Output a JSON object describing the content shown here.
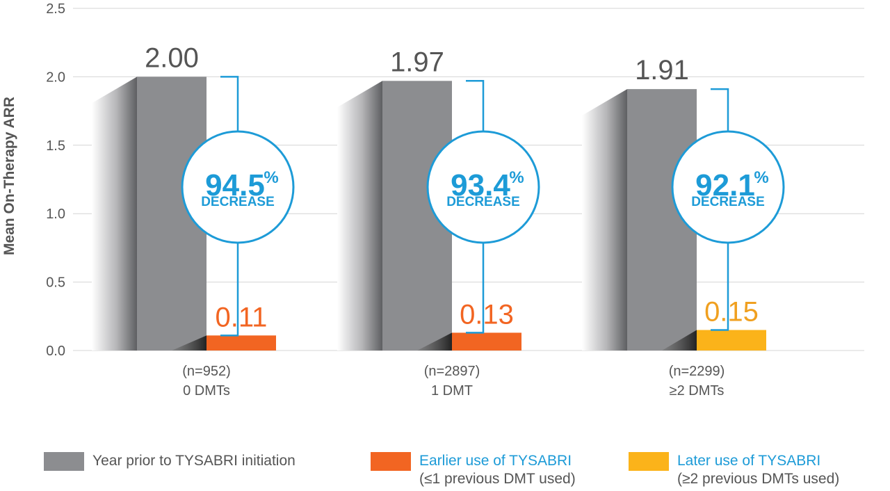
{
  "chart_data": {
    "type": "bar",
    "ylabel": "Mean On-Therapy ARR",
    "ylim": [
      0,
      2.5
    ],
    "yticks": [
      "0.0",
      "0.5",
      "1.0",
      "1.5",
      "2.0",
      "2.5"
    ],
    "grid": true,
    "groups": [
      {
        "n_label": "(n=952)",
        "label": "0 DMTs",
        "prior": 2.0,
        "prior_label": "2.00",
        "post": 0.11,
        "post_label": "0.11",
        "post_series": "earlier",
        "decrease_pct": "94.5",
        "decrease_label": "DECREASE"
      },
      {
        "n_label": "(n=2897)",
        "label": "1 DMT",
        "prior": 1.97,
        "prior_label": "1.97",
        "post": 0.13,
        "post_label": "0.13",
        "post_series": "earlier",
        "decrease_pct": "93.4",
        "decrease_label": "DECREASE"
      },
      {
        "n_label": "(n=2299)",
        "label": "≥2 DMTs",
        "prior": 1.91,
        "prior_label": "1.91",
        "post": 0.15,
        "post_label": "0.15",
        "post_series": "later",
        "decrease_pct": "92.1",
        "decrease_label": "DECREASE"
      }
    ],
    "percent_sign": "%",
    "legend": [
      {
        "key": "prior",
        "label": "Year prior to TYSABRI initiation",
        "sublabel": "",
        "color": "#8c8d90"
      },
      {
        "key": "earlier",
        "label": "Earlier use of TYSABRI",
        "sublabel": "(≤1 previous DMT used)",
        "color": "#f26522"
      },
      {
        "key": "later",
        "label": "Later use of TYSABRI",
        "sublabel": "(≥2 previous DMTs used)",
        "color": "#fbb31a"
      }
    ],
    "colors": {
      "prior": "#8c8d90",
      "earlier": "#f26522",
      "later": "#fbb31a",
      "accent": "#1d9bd7",
      "earlier_text": "#f26522",
      "later_text": "#f0a020"
    }
  }
}
